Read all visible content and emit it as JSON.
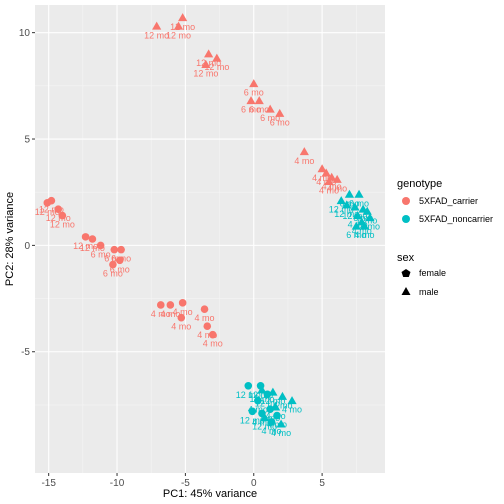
{
  "chart_data": {
    "type": "scatter",
    "title": "",
    "xlabel": "PC1: 45% variance",
    "ylabel": "PC2: 28% variance",
    "xlim": [
      -16.0,
      9.6
    ],
    "ylim": [
      -10.7,
      11.3
    ],
    "xticks": [
      -15,
      -10,
      -5,
      0,
      5
    ],
    "yticks": [
      -5,
      0,
      5,
      10
    ],
    "grid": true,
    "legend_position": "right",
    "colors": {
      "5XFAD_carrier": "#F8766D",
      "5XFAD_noncarrier": "#00BFC4"
    },
    "legends": {
      "genotype": {
        "title": "genotype",
        "entries": [
          "5XFAD_carrier",
          "5XFAD_noncarrier"
        ]
      },
      "sex": {
        "title": "sex",
        "entries": [
          "female",
          "male"
        ]
      }
    },
    "points": [
      {
        "x": -7.1,
        "y": 10.3,
        "genotype": "5XFAD_carrier",
        "sex": "male",
        "label": "12 mo"
      },
      {
        "x": -5.5,
        "y": 10.3,
        "genotype": "5XFAD_carrier",
        "sex": "male",
        "label": "12 mo"
      },
      {
        "x": -5.2,
        "y": 10.7,
        "genotype": "5XFAD_carrier",
        "sex": "male",
        "label": "12 mo"
      },
      {
        "x": -3.3,
        "y": 9.0,
        "genotype": "5XFAD_carrier",
        "sex": "male",
        "label": "12 mo"
      },
      {
        "x": -3.5,
        "y": 8.5,
        "genotype": "5XFAD_carrier",
        "sex": "male",
        "label": "12 mo"
      },
      {
        "x": -2.7,
        "y": 8.8,
        "genotype": "5XFAD_carrier",
        "sex": "male",
        "label": "12 mo"
      },
      {
        "x": 0.0,
        "y": 7.6,
        "genotype": "5XFAD_carrier",
        "sex": "male",
        "label": "6 mo"
      },
      {
        "x": -0.2,
        "y": 6.8,
        "genotype": "5XFAD_carrier",
        "sex": "male",
        "label": "6 mo"
      },
      {
        "x": 0.4,
        "y": 6.8,
        "genotype": "5XFAD_carrier",
        "sex": "male",
        "label": "6 mo"
      },
      {
        "x": 1.2,
        "y": 6.4,
        "genotype": "5XFAD_carrier",
        "sex": "male",
        "label": "6 mo"
      },
      {
        "x": 1.9,
        "y": 6.2,
        "genotype": "5XFAD_carrier",
        "sex": "male",
        "label": "6 mo"
      },
      {
        "x": 3.7,
        "y": 4.4,
        "genotype": "5XFAD_carrier",
        "sex": "male",
        "label": "4 mo"
      },
      {
        "x": 5.0,
        "y": 3.6,
        "genotype": "5XFAD_carrier",
        "sex": "male",
        "label": "4 mo"
      },
      {
        "x": 5.3,
        "y": 3.4,
        "genotype": "5XFAD_carrier",
        "sex": "male",
        "label": "4 mo"
      },
      {
        "x": 5.7,
        "y": 3.2,
        "genotype": "5XFAD_carrier",
        "sex": "male",
        "label": "4 mo"
      },
      {
        "x": 6.1,
        "y": 3.1,
        "genotype": "5XFAD_carrier",
        "sex": "male",
        "label": "4 mo"
      },
      {
        "x": 5.5,
        "y": 3.0,
        "genotype": "5XFAD_carrier",
        "sex": "male",
        "label": "4 mo"
      },
      {
        "x": -14.8,
        "y": 2.1,
        "genotype": "5XFAD_carrier",
        "sex": "female",
        "label": "12 mo"
      },
      {
        "x": -15.1,
        "y": 2.0,
        "genotype": "5XFAD_carrier",
        "sex": "female",
        "label": "12 mo"
      },
      {
        "x": -14.3,
        "y": 1.7,
        "genotype": "5XFAD_carrier",
        "sex": "female",
        "label": "12 mo"
      },
      {
        "x": -14.0,
        "y": 1.4,
        "genotype": "5XFAD_carrier",
        "sex": "female",
        "label": "12 mo"
      },
      {
        "x": -12.3,
        "y": 0.4,
        "genotype": "5XFAD_carrier",
        "sex": "female",
        "label": "12 mo"
      },
      {
        "x": -11.8,
        "y": 0.3,
        "genotype": "5XFAD_carrier",
        "sex": "female",
        "label": "12 mo"
      },
      {
        "x": -11.2,
        "y": 0.0,
        "genotype": "5XFAD_carrier",
        "sex": "female",
        "label": "6 mo"
      },
      {
        "x": -10.2,
        "y": -0.2,
        "genotype": "5XFAD_carrier",
        "sex": "female",
        "label": "6 mo"
      },
      {
        "x": -9.7,
        "y": -0.2,
        "genotype": "5XFAD_carrier",
        "sex": "female",
        "label": "6 mo"
      },
      {
        "x": -9.8,
        "y": -0.7,
        "genotype": "5XFAD_carrier",
        "sex": "female",
        "label": "6 mo"
      },
      {
        "x": -10.3,
        "y": -0.9,
        "genotype": "5XFAD_carrier",
        "sex": "female",
        "label": "6 mo"
      },
      {
        "x": -6.8,
        "y": -2.8,
        "genotype": "5XFAD_carrier",
        "sex": "female",
        "label": "4 mo"
      },
      {
        "x": -6.1,
        "y": -2.8,
        "genotype": "5XFAD_carrier",
        "sex": "female",
        "label": "4 mo"
      },
      {
        "x": -5.2,
        "y": -2.7,
        "genotype": "5XFAD_carrier",
        "sex": "female",
        "label": "4 mo"
      },
      {
        "x": -5.3,
        "y": -3.4,
        "genotype": "5XFAD_carrier",
        "sex": "female",
        "label": "4 mo"
      },
      {
        "x": -3.6,
        "y": -3.0,
        "genotype": "5XFAD_carrier",
        "sex": "female",
        "label": "4 mo"
      },
      {
        "x": -3.4,
        "y": -3.8,
        "genotype": "5XFAD_carrier",
        "sex": "female",
        "label": "4 mo"
      },
      {
        "x": -3.0,
        "y": -4.2,
        "genotype": "5XFAD_carrier",
        "sex": "female",
        "label": "4 mo"
      },
      {
        "x": 7.0,
        "y": 2.4,
        "genotype": "5XFAD_noncarrier",
        "sex": "male",
        "label": "6 mo"
      },
      {
        "x": 7.7,
        "y": 2.4,
        "genotype": "5XFAD_noncarrier",
        "sex": "male",
        "label": "6 mo"
      },
      {
        "x": 6.4,
        "y": 2.1,
        "genotype": "5XFAD_noncarrier",
        "sex": "male",
        "label": "12 mo"
      },
      {
        "x": 6.8,
        "y": 1.9,
        "genotype": "5XFAD_noncarrier",
        "sex": "male",
        "label": "12 mo"
      },
      {
        "x": 7.4,
        "y": 1.8,
        "genotype": "5XFAD_noncarrier",
        "sex": "male",
        "label": "12 mo"
      },
      {
        "x": 8.0,
        "y": 1.7,
        "genotype": "5XFAD_noncarrier",
        "sex": "male",
        "label": "6 mo"
      },
      {
        "x": 8.3,
        "y": 1.6,
        "genotype": "5XFAD_noncarrier",
        "sex": "male",
        "label": "6 mo"
      },
      {
        "x": 7.6,
        "y": 1.4,
        "genotype": "5XFAD_noncarrier",
        "sex": "male",
        "label": "4 mo"
      },
      {
        "x": 8.5,
        "y": 1.3,
        "genotype": "5XFAD_noncarrier",
        "sex": "male",
        "label": "4 mo"
      },
      {
        "x": 7.9,
        "y": 1.1,
        "genotype": "5XFAD_noncarrier",
        "sex": "male",
        "label": "4 mo"
      },
      {
        "x": 7.5,
        "y": 0.9,
        "genotype": "5XFAD_noncarrier",
        "sex": "male",
        "label": "6 mo"
      },
      {
        "x": 8.1,
        "y": 0.9,
        "genotype": "5XFAD_noncarrier",
        "sex": "male",
        "label": "4 mo"
      },
      {
        "x": 0.6,
        "y": -6.8,
        "genotype": "5XFAD_noncarrier",
        "sex": "male",
        "label": "12 mo"
      },
      {
        "x": 1.4,
        "y": -6.9,
        "genotype": "5XFAD_noncarrier",
        "sex": "male",
        "label": "12 mo"
      },
      {
        "x": 2.1,
        "y": -7.1,
        "genotype": "5XFAD_noncarrier",
        "sex": "male",
        "label": "4 mo"
      },
      {
        "x": 2.8,
        "y": -7.3,
        "genotype": "5XFAD_noncarrier",
        "sex": "male",
        "label": "4 mo"
      },
      {
        "x": 1.6,
        "y": -7.6,
        "genotype": "5XFAD_noncarrier",
        "sex": "male",
        "label": "4 mo"
      },
      {
        "x": 0.8,
        "y": -8.1,
        "genotype": "5XFAD_noncarrier",
        "sex": "male",
        "label": "12 mo"
      },
      {
        "x": 2.0,
        "y": -8.4,
        "genotype": "5XFAD_noncarrier",
        "sex": "male",
        "label": "4 mo"
      },
      {
        "x": -0.4,
        "y": -6.6,
        "genotype": "5XFAD_noncarrier",
        "sex": "female",
        "label": "12 mo"
      },
      {
        "x": 0.5,
        "y": -6.6,
        "genotype": "5XFAD_noncarrier",
        "sex": "female",
        "label": "12 mo"
      },
      {
        "x": 1.0,
        "y": -7.0,
        "genotype": "5XFAD_noncarrier",
        "sex": "female",
        "label": "12 mo"
      },
      {
        "x": 0.3,
        "y": -7.3,
        "genotype": "5XFAD_noncarrier",
        "sex": "female",
        "label": "4 mo"
      },
      {
        "x": 1.2,
        "y": -7.7,
        "genotype": "5XFAD_noncarrier",
        "sex": "female",
        "label": "4 mo"
      },
      {
        "x": 0.6,
        "y": -7.9,
        "genotype": "5XFAD_noncarrier",
        "sex": "female",
        "label": "4 mo"
      },
      {
        "x": -0.1,
        "y": -7.8,
        "genotype": "5XFAD_noncarrier",
        "sex": "female",
        "label": "12 mo"
      },
      {
        "x": 1.3,
        "y": -8.3,
        "genotype": "5XFAD_noncarrier",
        "sex": "female",
        "label": "4 mo"
      },
      {
        "x": 1.7,
        "y": -8.0,
        "genotype": "5XFAD_noncarrier",
        "sex": "female",
        "label": "4 mo"
      }
    ]
  }
}
